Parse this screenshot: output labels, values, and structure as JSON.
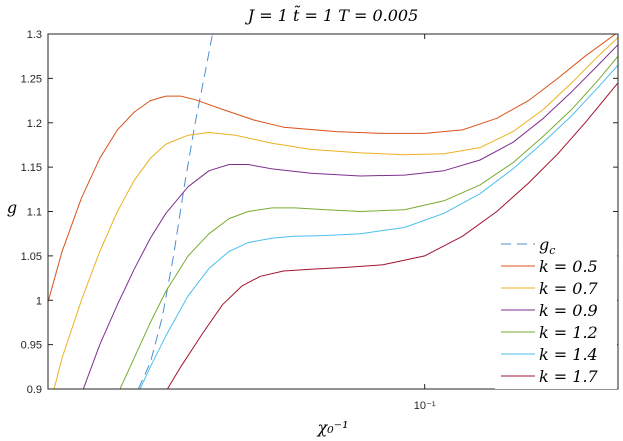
{
  "chart_data": {
    "type": "line",
    "title": "J = 1 t̃ = 1 T = 0.005",
    "xlabel": "χ₀⁻¹",
    "ylabel": "g",
    "xscale": "log",
    "xlim": [
      0.0386,
      0.163
    ],
    "ylim": [
      0.9,
      1.3
    ],
    "xticks": [
      {
        "value": 0.1,
        "label": "10⁻¹"
      }
    ],
    "yticks": [
      {
        "value": 0.9,
        "label": "0.9"
      },
      {
        "value": 0.95,
        "label": "0.95"
      },
      {
        "value": 1.0,
        "label": "1"
      },
      {
        "value": 1.05,
        "label": "1.05"
      },
      {
        "value": 1.1,
        "label": "1.1"
      },
      {
        "value": 1.15,
        "label": "1.15"
      },
      {
        "value": 1.2,
        "label": "1.2"
      },
      {
        "value": 1.25,
        "label": "1.25"
      },
      {
        "value": 1.3,
        "label": "1.3"
      }
    ],
    "grid": false,
    "legend_position": "bottom-right",
    "series": [
      {
        "name": "g_c",
        "legend_label": "g",
        "legend_sub": "c",
        "dash": true,
        "color": "#4b8fd1",
        "points": [
          [
            0.0485,
            0.9
          ],
          [
            0.05,
            0.93
          ],
          [
            0.0515,
            0.98
          ],
          [
            0.053,
            1.05
          ],
          [
            0.0545,
            1.13
          ],
          [
            0.056,
            1.2
          ],
          [
            0.0575,
            1.26
          ],
          [
            0.0585,
            1.3
          ]
        ]
      },
      {
        "name": "k = 0.5",
        "legend_label": "k = 0.5",
        "color": "#d95319",
        "points": [
          [
            0.0386,
            0.998
          ],
          [
            0.04,
            1.055
          ],
          [
            0.042,
            1.115
          ],
          [
            0.044,
            1.16
          ],
          [
            0.046,
            1.192
          ],
          [
            0.048,
            1.212
          ],
          [
            0.05,
            1.225
          ],
          [
            0.052,
            1.23
          ],
          [
            0.054,
            1.23
          ],
          [
            0.056,
            1.226
          ],
          [
            0.06,
            1.215
          ],
          [
            0.065,
            1.203
          ],
          [
            0.07,
            1.195
          ],
          [
            0.08,
            1.19
          ],
          [
            0.09,
            1.188
          ],
          [
            0.1,
            1.188
          ],
          [
            0.11,
            1.192
          ],
          [
            0.12,
            1.205
          ],
          [
            0.13,
            1.225
          ],
          [
            0.14,
            1.25
          ],
          [
            0.15,
            1.275
          ],
          [
            0.163,
            1.302
          ]
        ]
      },
      {
        "name": "k = 0.7",
        "legend_label": "k = 0.7",
        "color": "#edb120",
        "points": [
          [
            0.0392,
            0.9
          ],
          [
            0.04,
            0.935
          ],
          [
            0.042,
            1.0
          ],
          [
            0.044,
            1.055
          ],
          [
            0.046,
            1.1
          ],
          [
            0.048,
            1.135
          ],
          [
            0.05,
            1.16
          ],
          [
            0.052,
            1.176
          ],
          [
            0.055,
            1.186
          ],
          [
            0.058,
            1.189
          ],
          [
            0.062,
            1.186
          ],
          [
            0.068,
            1.177
          ],
          [
            0.075,
            1.17
          ],
          [
            0.085,
            1.166
          ],
          [
            0.095,
            1.164
          ],
          [
            0.105,
            1.165
          ],
          [
            0.115,
            1.172
          ],
          [
            0.125,
            1.19
          ],
          [
            0.135,
            1.215
          ],
          [
            0.145,
            1.245
          ],
          [
            0.155,
            1.275
          ],
          [
            0.163,
            1.296
          ]
        ]
      },
      {
        "name": "k = 0.9",
        "legend_label": "k = 0.9",
        "color": "#7e2f8e",
        "points": [
          [
            0.0422,
            0.9
          ],
          [
            0.044,
            0.95
          ],
          [
            0.046,
            0.995
          ],
          [
            0.048,
            1.035
          ],
          [
            0.05,
            1.07
          ],
          [
            0.052,
            1.098
          ],
          [
            0.055,
            1.128
          ],
          [
            0.058,
            1.146
          ],
          [
            0.061,
            1.153
          ],
          [
            0.064,
            1.153
          ],
          [
            0.068,
            1.148
          ],
          [
            0.075,
            1.143
          ],
          [
            0.085,
            1.14
          ],
          [
            0.095,
            1.141
          ],
          [
            0.105,
            1.146
          ],
          [
            0.115,
            1.158
          ],
          [
            0.125,
            1.178
          ],
          [
            0.135,
            1.205
          ],
          [
            0.145,
            1.235
          ],
          [
            0.155,
            1.265
          ],
          [
            0.163,
            1.288
          ]
        ]
      },
      {
        "name": "k = 1.2",
        "legend_label": "k = 1.2",
        "color": "#77ac30",
        "points": [
          [
            0.0463,
            0.9
          ],
          [
            0.048,
            0.935
          ],
          [
            0.05,
            0.975
          ],
          [
            0.052,
            1.01
          ],
          [
            0.055,
            1.05
          ],
          [
            0.058,
            1.075
          ],
          [
            0.061,
            1.092
          ],
          [
            0.064,
            1.1
          ],
          [
            0.068,
            1.104
          ],
          [
            0.072,
            1.104
          ],
          [
            0.078,
            1.102
          ],
          [
            0.085,
            1.1
          ],
          [
            0.095,
            1.102
          ],
          [
            0.105,
            1.112
          ],
          [
            0.115,
            1.13
          ],
          [
            0.125,
            1.155
          ],
          [
            0.135,
            1.185
          ],
          [
            0.145,
            1.215
          ],
          [
            0.155,
            1.248
          ],
          [
            0.163,
            1.275
          ]
        ]
      },
      {
        "name": "k = 1.4",
        "legend_label": "k = 1.4",
        "color": "#4dbeee",
        "points": [
          [
            0.0487,
            0.9
          ],
          [
            0.05,
            0.925
          ],
          [
            0.052,
            0.96
          ],
          [
            0.055,
            1.005
          ],
          [
            0.058,
            1.036
          ],
          [
            0.061,
            1.055
          ],
          [
            0.064,
            1.065
          ],
          [
            0.068,
            1.07
          ],
          [
            0.072,
            1.072
          ],
          [
            0.078,
            1.073
          ],
          [
            0.085,
            1.075
          ],
          [
            0.095,
            1.082
          ],
          [
            0.105,
            1.098
          ],
          [
            0.115,
            1.12
          ],
          [
            0.125,
            1.148
          ],
          [
            0.135,
            1.178
          ],
          [
            0.145,
            1.208
          ],
          [
            0.155,
            1.24
          ],
          [
            0.163,
            1.265
          ]
        ]
      },
      {
        "name": "k = 1.7",
        "legend_label": "k = 1.7",
        "color": "#a2142f",
        "points": [
          [
            0.0522,
            0.9
          ],
          [
            0.054,
            0.925
          ],
          [
            0.057,
            0.962
          ],
          [
            0.06,
            0.995
          ],
          [
            0.063,
            1.016
          ],
          [
            0.066,
            1.027
          ],
          [
            0.07,
            1.033
          ],
          [
            0.075,
            1.035
          ],
          [
            0.082,
            1.037
          ],
          [
            0.09,
            1.04
          ],
          [
            0.1,
            1.05
          ],
          [
            0.11,
            1.072
          ],
          [
            0.12,
            1.1
          ],
          [
            0.13,
            1.132
          ],
          [
            0.14,
            1.165
          ],
          [
            0.15,
            1.2
          ],
          [
            0.163,
            1.245
          ]
        ]
      }
    ]
  }
}
